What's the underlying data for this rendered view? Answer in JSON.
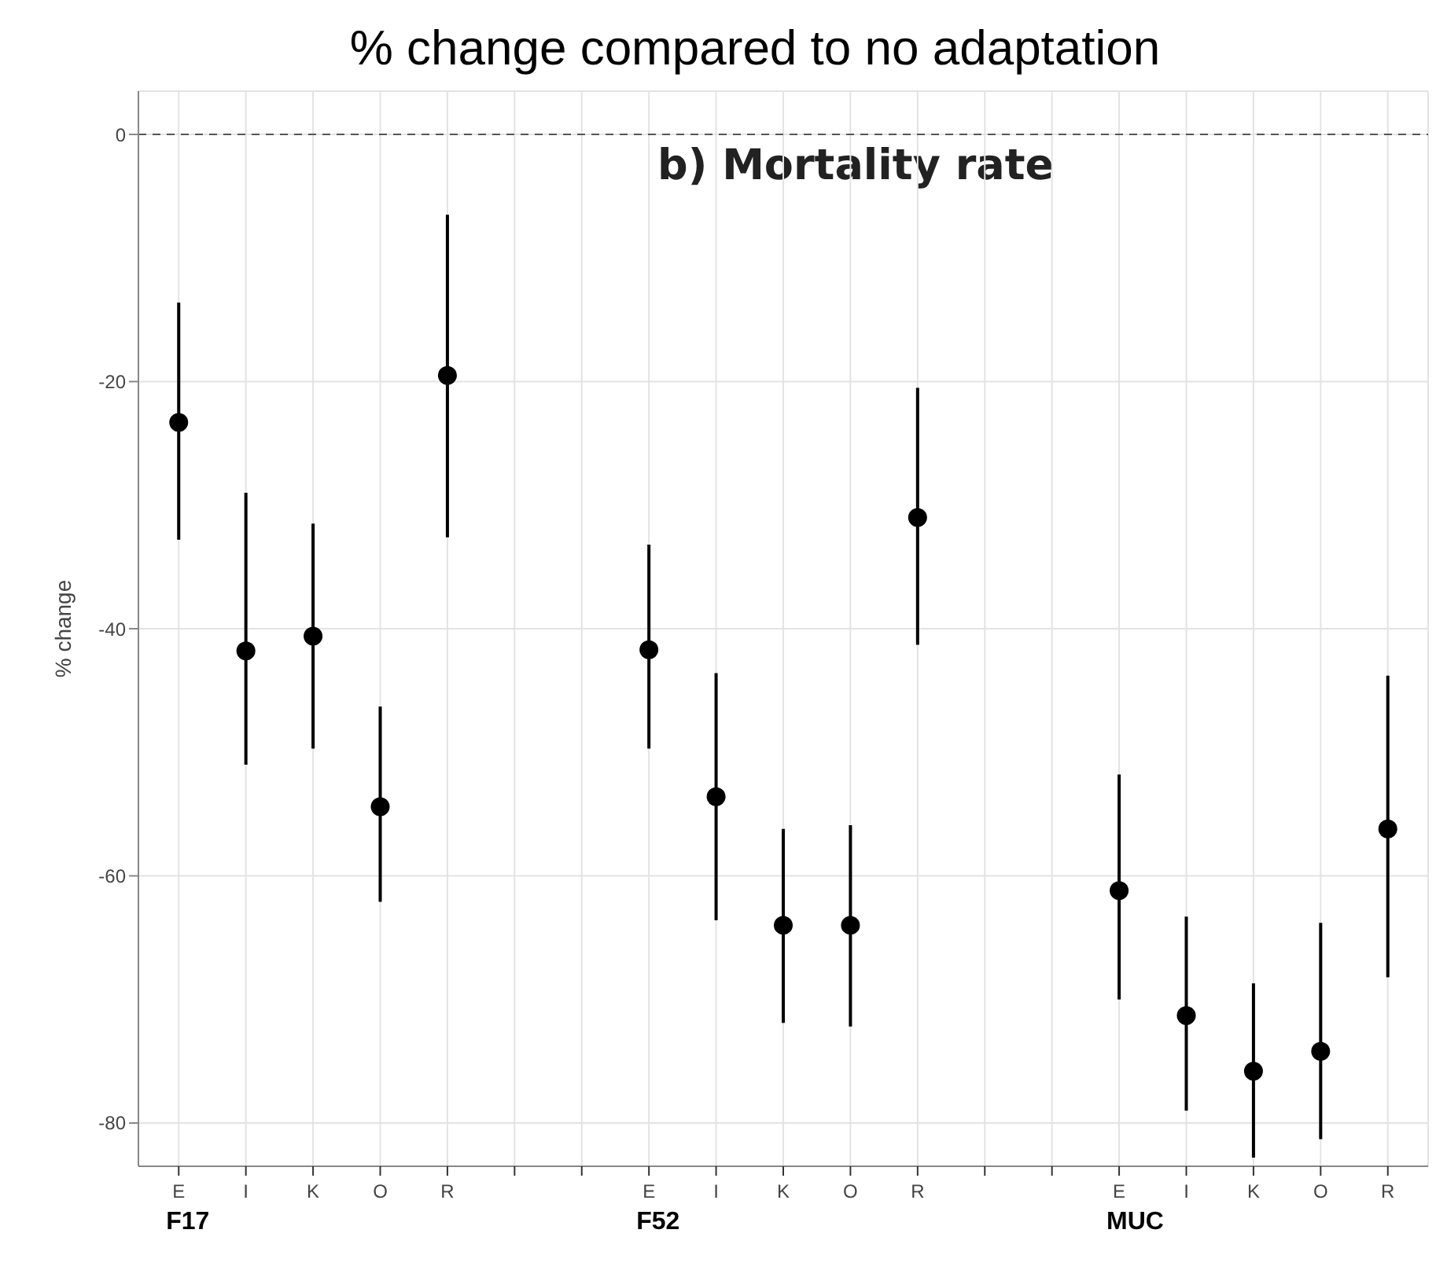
{
  "chart_data": {
    "type": "scatter",
    "title": "% change compared to no adaptation",
    "subtitle": "b) Mortality rate",
    "ylabel": "% change",
    "categories": [
      "E",
      "I",
      "K",
      "O",
      "R",
      null,
      null,
      "E",
      "I",
      "K",
      "O",
      "R",
      null,
      null,
      "E",
      "I",
      "K",
      "O",
      "R"
    ],
    "values": [
      -23.3,
      -41.8,
      -40.6,
      -54.4,
      -19.5,
      null,
      null,
      -41.7,
      -53.6,
      -64.0,
      -64.0,
      -31.0,
      null,
      null,
      -61.2,
      -71.3,
      -75.8,
      -74.2,
      -56.2
    ],
    "errors": [
      [
        -32.8,
        -13.6
      ],
      [
        -51.0,
        -29.0
      ],
      [
        -49.7,
        -31.5
      ],
      [
        -62.1,
        -46.3
      ],
      [
        -32.6,
        -6.5
      ],
      null,
      null,
      [
        -49.7,
        -33.2
      ],
      [
        -63.6,
        -43.6
      ],
      [
        -71.9,
        -56.2
      ],
      [
        -72.2,
        -55.9
      ],
      [
        -41.3,
        -20.5
      ],
      null,
      null,
      [
        -70.0,
        -51.8
      ],
      [
        -79.0,
        -63.3
      ],
      [
        -82.8,
        -68.7
      ],
      [
        -81.3,
        -63.8
      ],
      [
        -68.2,
        -43.8
      ]
    ],
    "color": "#000000",
    "marker": "circle",
    "annotations": [
      "F17",
      "F52",
      "MUC"
    ],
    "ylim": [
      -83.5,
      3.5
    ],
    "yticks": [
      0,
      -20,
      -40,
      -60,
      -80
    ],
    "grid": true,
    "ref_lines": [
      {
        "axis": "y",
        "value": 0,
        "color": "#555555",
        "line_style": "dashed"
      }
    ]
  }
}
